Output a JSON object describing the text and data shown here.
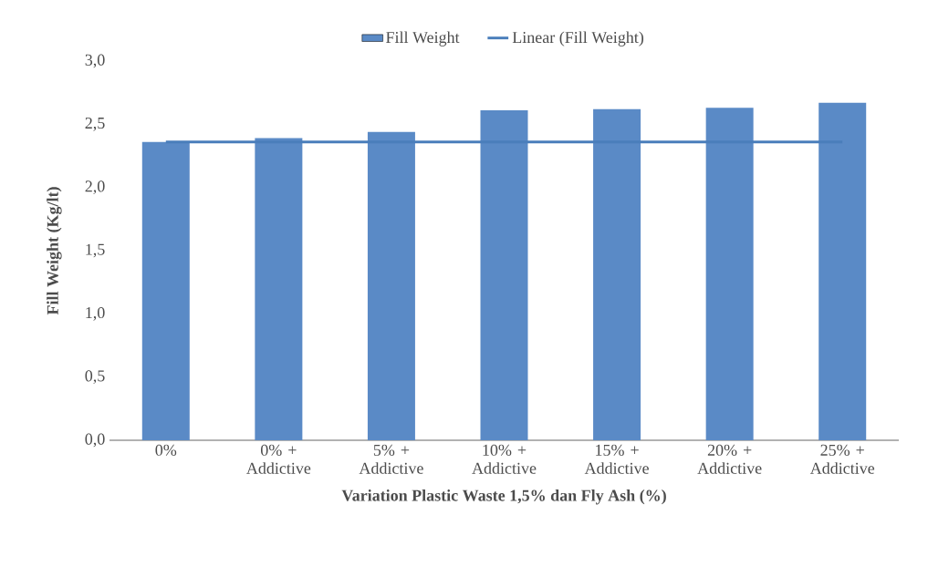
{
  "chart_data": {
    "type": "bar",
    "xlabel": "Variation Plastic Waste 1,5% dan Fly Ash (%)",
    "ylabel": "Fill Weight (Kg/lt)",
    "categories": [
      "0%",
      "0% + Addictive",
      "5% + Addictive",
      "10% + Addictive",
      "15% + Addictive",
      "20% + Addictive",
      "25% + Addictive"
    ],
    "series": [
      {
        "name": "Fill Weight",
        "color": "#5a8ac6",
        "values": [
          2.36,
          2.39,
          2.44,
          2.61,
          2.62,
          2.63,
          2.67
        ]
      },
      {
        "name": "Linear (Fill Weight)",
        "type": "line",
        "color": "#4a7ebb",
        "values": [
          2.36,
          2.36,
          2.36,
          2.36,
          2.36,
          2.36,
          2.36
        ]
      }
    ],
    "ylim": [
      0,
      3
    ],
    "yticks": [
      {
        "value": 0,
        "label": "0,0"
      },
      {
        "value": 0.5,
        "label": "0,5"
      },
      {
        "value": 1,
        "label": "1,0"
      },
      {
        "value": 1.5,
        "label": "1,5"
      },
      {
        "value": 2,
        "label": "2,0"
      },
      {
        "value": 2.5,
        "label": "2,5"
      },
      {
        "value": 3,
        "label": "3,0"
      }
    ],
    "legend": "top",
    "grid": false,
    "marker": "none"
  }
}
